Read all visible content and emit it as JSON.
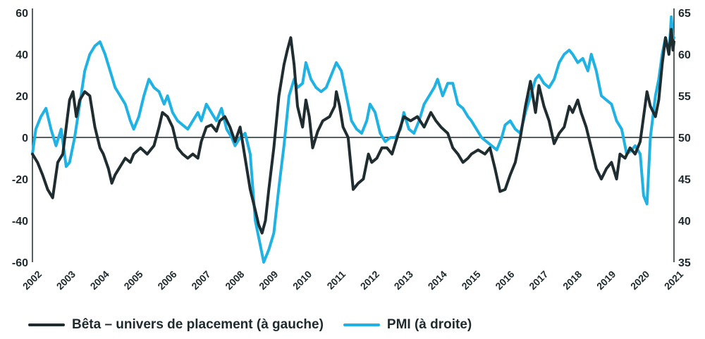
{
  "chart_data": {
    "type": "line",
    "x_tick_labels": [
      "2002",
      "2003",
      "2004",
      "2005",
      "2006",
      "2007",
      "2008",
      "2009",
      "2010",
      "2011",
      "2012",
      "2013",
      "2014",
      "2015",
      "2016",
      "2017",
      "2018",
      "2019",
      "2020",
      "2021"
    ],
    "x_range": [
      2002.0,
      2021.0
    ],
    "y_left": {
      "range": [
        -60,
        60
      ],
      "ticks": [
        60,
        40,
        20,
        0,
        -20,
        -40,
        -60
      ]
    },
    "y_right": {
      "range": [
        35,
        65
      ],
      "ticks": [
        65,
        60,
        55,
        50,
        45,
        40,
        35
      ]
    },
    "zero_line": 0,
    "grid": false,
    "legend_position": "bottom",
    "colors": {
      "beta": "#1f2d30",
      "pmi": "#1fb2e3",
      "axis": "#1f2a2e"
    },
    "series": [
      {
        "name": "Bêta – univers de placement (à gauche)",
        "axis": "left",
        "points": [
          [
            2002.0,
            -8
          ],
          [
            2002.15,
            -12
          ],
          [
            2002.3,
            -18
          ],
          [
            2002.45,
            -25
          ],
          [
            2002.6,
            -29
          ],
          [
            2002.75,
            -12
          ],
          [
            2002.9,
            -8
          ],
          [
            2003.0,
            5
          ],
          [
            2003.1,
            18
          ],
          [
            2003.2,
            22
          ],
          [
            2003.3,
            10
          ],
          [
            2003.4,
            18
          ],
          [
            2003.55,
            22
          ],
          [
            2003.7,
            20
          ],
          [
            2003.85,
            5
          ],
          [
            2004.0,
            -5
          ],
          [
            2004.1,
            -8
          ],
          [
            2004.25,
            -15
          ],
          [
            2004.35,
            -22
          ],
          [
            2004.45,
            -18
          ],
          [
            2004.6,
            -14
          ],
          [
            2004.75,
            -10
          ],
          [
            2004.9,
            -12
          ],
          [
            2005.0,
            -8
          ],
          [
            2005.2,
            -5
          ],
          [
            2005.4,
            -8
          ],
          [
            2005.6,
            -4
          ],
          [
            2005.75,
            5
          ],
          [
            2005.85,
            12
          ],
          [
            2006.0,
            10
          ],
          [
            2006.15,
            5
          ],
          [
            2006.3,
            -5
          ],
          [
            2006.45,
            -8
          ],
          [
            2006.6,
            -10
          ],
          [
            2006.75,
            -8
          ],
          [
            2006.9,
            -10
          ],
          [
            2007.0,
            -2
          ],
          [
            2007.15,
            5
          ],
          [
            2007.3,
            6
          ],
          [
            2007.45,
            3
          ],
          [
            2007.55,
            8
          ],
          [
            2007.7,
            10
          ],
          [
            2007.85,
            5
          ],
          [
            2008.0,
            -2
          ],
          [
            2008.15,
            5
          ],
          [
            2008.3,
            -10
          ],
          [
            2008.45,
            -25
          ],
          [
            2008.6,
            -35
          ],
          [
            2008.7,
            -42
          ],
          [
            2008.8,
            -46
          ],
          [
            2008.9,
            -40
          ],
          [
            2009.0,
            -25
          ],
          [
            2009.15,
            -5
          ],
          [
            2009.3,
            20
          ],
          [
            2009.45,
            35
          ],
          [
            2009.55,
            42
          ],
          [
            2009.65,
            48
          ],
          [
            2009.75,
            35
          ],
          [
            2009.85,
            15
          ],
          [
            2010.0,
            5
          ],
          [
            2010.1,
            18
          ],
          [
            2010.2,
            10
          ],
          [
            2010.3,
            -5
          ],
          [
            2010.45,
            3
          ],
          [
            2010.6,
            8
          ],
          [
            2010.8,
            10
          ],
          [
            2010.95,
            15
          ],
          [
            2011.0,
            22
          ],
          [
            2011.1,
            15
          ],
          [
            2011.2,
            5
          ],
          [
            2011.35,
            0
          ],
          [
            2011.5,
            -25
          ],
          [
            2011.65,
            -22
          ],
          [
            2011.8,
            -20
          ],
          [
            2011.95,
            -8
          ],
          [
            2012.05,
            -12
          ],
          [
            2012.2,
            -10
          ],
          [
            2012.35,
            -5
          ],
          [
            2012.5,
            -5
          ],
          [
            2012.65,
            -8
          ],
          [
            2012.8,
            0
          ],
          [
            2013.0,
            10
          ],
          [
            2013.2,
            8
          ],
          [
            2013.4,
            10
          ],
          [
            2013.6,
            5
          ],
          [
            2013.8,
            12
          ],
          [
            2013.95,
            8
          ],
          [
            2014.1,
            5
          ],
          [
            2014.3,
            2
          ],
          [
            2014.45,
            -5
          ],
          [
            2014.6,
            -8
          ],
          [
            2014.75,
            -12
          ],
          [
            2014.9,
            -10
          ],
          [
            2015.0,
            -8
          ],
          [
            2015.2,
            -6
          ],
          [
            2015.4,
            -8
          ],
          [
            2015.55,
            -5
          ],
          [
            2015.7,
            -15
          ],
          [
            2015.85,
            -26
          ],
          [
            2016.0,
            -25
          ],
          [
            2016.15,
            -18
          ],
          [
            2016.3,
            -12
          ],
          [
            2016.45,
            0
          ],
          [
            2016.6,
            15
          ],
          [
            2016.75,
            27
          ],
          [
            2016.9,
            12
          ],
          [
            2017.0,
            25
          ],
          [
            2017.15,
            15
          ],
          [
            2017.3,
            8
          ],
          [
            2017.45,
            -3
          ],
          [
            2017.6,
            2
          ],
          [
            2017.75,
            5
          ],
          [
            2017.9,
            15
          ],
          [
            2018.0,
            12
          ],
          [
            2018.15,
            18
          ],
          [
            2018.25,
            12
          ],
          [
            2018.4,
            5
          ],
          [
            2018.55,
            -5
          ],
          [
            2018.7,
            -15
          ],
          [
            2018.85,
            -20
          ],
          [
            2019.0,
            -15
          ],
          [
            2019.15,
            -12
          ],
          [
            2019.3,
            -20
          ],
          [
            2019.4,
            -8
          ],
          [
            2019.55,
            -10
          ],
          [
            2019.7,
            -5
          ],
          [
            2019.85,
            -8
          ],
          [
            2020.0,
            -2
          ],
          [
            2020.1,
            10
          ],
          [
            2020.2,
            22
          ],
          [
            2020.3,
            15
          ],
          [
            2020.45,
            10
          ],
          [
            2020.55,
            18
          ],
          [
            2020.65,
            35
          ],
          [
            2020.75,
            48
          ],
          [
            2020.85,
            40
          ],
          [
            2020.92,
            52
          ],
          [
            2020.97,
            42
          ],
          [
            2021.0,
            46
          ]
        ]
      },
      {
        "name": "PMI (à droite)",
        "axis": "right",
        "points": [
          [
            2002.0,
            48
          ],
          [
            2002.1,
            51
          ],
          [
            2002.25,
            52.5
          ],
          [
            2002.4,
            53.5
          ],
          [
            2002.55,
            51
          ],
          [
            2002.7,
            49
          ],
          [
            2002.85,
            51
          ],
          [
            2003.0,
            46.5
          ],
          [
            2003.1,
            47
          ],
          [
            2003.25,
            50
          ],
          [
            2003.4,
            54
          ],
          [
            2003.55,
            58
          ],
          [
            2003.7,
            60
          ],
          [
            2003.85,
            61
          ],
          [
            2004.0,
            61.5
          ],
          [
            2004.15,
            60
          ],
          [
            2004.3,
            58
          ],
          [
            2004.45,
            56
          ],
          [
            2004.6,
            55
          ],
          [
            2004.75,
            54
          ],
          [
            2004.9,
            52
          ],
          [
            2005.0,
            51
          ],
          [
            2005.15,
            52.5
          ],
          [
            2005.3,
            55
          ],
          [
            2005.45,
            57
          ],
          [
            2005.6,
            56
          ],
          [
            2005.75,
            55.5
          ],
          [
            2005.9,
            54
          ],
          [
            2006.0,
            55
          ],
          [
            2006.15,
            53
          ],
          [
            2006.3,
            52
          ],
          [
            2006.45,
            51.5
          ],
          [
            2006.6,
            51
          ],
          [
            2006.75,
            52
          ],
          [
            2006.9,
            53
          ],
          [
            2007.0,
            52
          ],
          [
            2007.15,
            54
          ],
          [
            2007.3,
            53
          ],
          [
            2007.45,
            52
          ],
          [
            2007.6,
            53.5
          ],
          [
            2007.75,
            51
          ],
          [
            2007.9,
            50
          ],
          [
            2008.0,
            49
          ],
          [
            2008.15,
            50
          ],
          [
            2008.3,
            50.5
          ],
          [
            2008.45,
            48
          ],
          [
            2008.6,
            40
          ],
          [
            2008.75,
            37
          ],
          [
            2008.85,
            35
          ],
          [
            2009.0,
            36.5
          ],
          [
            2009.15,
            38.5
          ],
          [
            2009.3,
            44
          ],
          [
            2009.45,
            49
          ],
          [
            2009.6,
            55
          ],
          [
            2009.75,
            57
          ],
          [
            2009.85,
            56
          ],
          [
            2010.0,
            56.5
          ],
          [
            2010.1,
            59
          ],
          [
            2010.25,
            57
          ],
          [
            2010.4,
            56
          ],
          [
            2010.55,
            55.5
          ],
          [
            2010.7,
            56
          ],
          [
            2010.85,
            57.5
          ],
          [
            2011.0,
            59
          ],
          [
            2011.15,
            58
          ],
          [
            2011.3,
            55
          ],
          [
            2011.45,
            52
          ],
          [
            2011.6,
            51
          ],
          [
            2011.75,
            50.5
          ],
          [
            2011.9,
            52
          ],
          [
            2012.0,
            54
          ],
          [
            2012.15,
            53
          ],
          [
            2012.3,
            50.5
          ],
          [
            2012.45,
            49.5
          ],
          [
            2012.6,
            50
          ],
          [
            2012.75,
            50
          ],
          [
            2012.9,
            51
          ],
          [
            2013.0,
            53
          ],
          [
            2013.15,
            51
          ],
          [
            2013.3,
            50.5
          ],
          [
            2013.45,
            52
          ],
          [
            2013.6,
            54
          ],
          [
            2013.75,
            55
          ],
          [
            2013.9,
            56
          ],
          [
            2014.0,
            57
          ],
          [
            2014.15,
            55
          ],
          [
            2014.3,
            56.5
          ],
          [
            2014.45,
            56.5
          ],
          [
            2014.6,
            54
          ],
          [
            2014.75,
            53.5
          ],
          [
            2014.9,
            52.5
          ],
          [
            2015.0,
            52
          ],
          [
            2015.15,
            51
          ],
          [
            2015.3,
            50
          ],
          [
            2015.45,
            49.5
          ],
          [
            2015.6,
            49
          ],
          [
            2015.75,
            48.5
          ],
          [
            2015.9,
            50
          ],
          [
            2016.0,
            51.5
          ],
          [
            2016.15,
            52
          ],
          [
            2016.3,
            51
          ],
          [
            2016.45,
            50.5
          ],
          [
            2016.6,
            53
          ],
          [
            2016.75,
            55
          ],
          [
            2016.9,
            57
          ],
          [
            2017.0,
            57.5
          ],
          [
            2017.15,
            56.5
          ],
          [
            2017.3,
            56
          ],
          [
            2017.45,
            57
          ],
          [
            2017.6,
            59
          ],
          [
            2017.75,
            60
          ],
          [
            2017.9,
            60.5
          ],
          [
            2018.0,
            60
          ],
          [
            2018.15,
            59
          ],
          [
            2018.3,
            59.5
          ],
          [
            2018.45,
            58
          ],
          [
            2018.55,
            60
          ],
          [
            2018.7,
            58
          ],
          [
            2018.85,
            55
          ],
          [
            2019.0,
            54.5
          ],
          [
            2019.15,
            54
          ],
          [
            2019.3,
            52
          ],
          [
            2019.45,
            51
          ],
          [
            2019.6,
            48
          ],
          [
            2019.75,
            48.5
          ],
          [
            2019.85,
            49
          ],
          [
            2020.0,
            48
          ],
          [
            2020.1,
            43
          ],
          [
            2020.2,
            42
          ],
          [
            2020.3,
            50
          ],
          [
            2020.45,
            55
          ],
          [
            2020.55,
            57
          ],
          [
            2020.65,
            60
          ],
          [
            2020.75,
            62
          ],
          [
            2020.85,
            60
          ],
          [
            2020.92,
            64.5
          ],
          [
            2020.97,
            62
          ],
          [
            2021.0,
            62
          ]
        ]
      }
    ]
  },
  "legend": {
    "beta_label": "Bêta – univers de placement (à gauche)",
    "pmi_label": "PMI (à droite)"
  }
}
